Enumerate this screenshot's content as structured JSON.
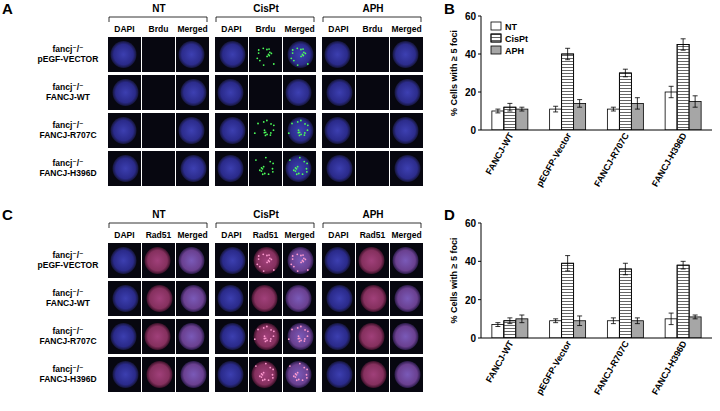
{
  "panels": [
    {
      "letter": "A",
      "groups": [
        "NT",
        "CisPt",
        "APH"
      ],
      "channels": [
        "DAPI",
        "Brdu",
        "Merged"
      ],
      "rows": [
        [
          "fancj⁻/⁻",
          "pEGF-VECTOR"
        ],
        [
          "fancj⁻/⁻",
          "FANCJ-WT"
        ],
        [
          "fancj⁻/⁻",
          "FANCJ-R707C"
        ],
        [
          "fancj⁻/⁻",
          "FANCJ-H396D"
        ]
      ]
    },
    {
      "letter": "C",
      "groups": [
        "NT",
        "CisPt",
        "APH"
      ],
      "channels": [
        "DAPI",
        "Rad51",
        "Merged"
      ],
      "rows": [
        [
          "fancj⁻/⁻",
          "pEGF-VECTOR"
        ],
        [
          "fancj⁻/⁻",
          "FANCJ-WT"
        ],
        [
          "fancj⁻/⁻",
          "FANCJ-R707C"
        ],
        [
          "fancj⁻/⁻",
          "FANCJ-H396D"
        ]
      ]
    }
  ],
  "chart_data": [
    {
      "type": "bar",
      "annotations": [
        "B"
      ],
      "y_label": "% Cells with ≥ 5 foci",
      "categories": [
        "FANCJ-WT",
        "pEGFP-Vector",
        "FANCJ-R707C",
        "FANCJ-H396D"
      ],
      "series": [
        {
          "name": "NT",
          "color": "#ffffff",
          "values": [
            10,
            11,
            11,
            20
          ],
          "errors": [
            1,
            1.5,
            1,
            3
          ]
        },
        {
          "name": "CisPt",
          "color": "#ffffff",
          "marker": "hatch",
          "values": [
            12,
            40,
            30,
            45
          ],
          "errors": [
            2,
            3,
            2,
            3
          ]
        },
        {
          "name": "APH",
          "color": "#a6a6a6",
          "values": [
            11,
            14,
            14,
            15
          ],
          "errors": [
            1,
            2,
            3,
            3
          ]
        }
      ],
      "ylim": [
        0,
        60
      ],
      "yticks": [
        0,
        20,
        40,
        60
      ],
      "legend": "top-left"
    },
    {
      "type": "bar",
      "annotations": [
        "D"
      ],
      "y_label": "% Cells with ≥ 5 foci",
      "categories": [
        "FANCJ-WT",
        "pEGFP-Vector",
        "FANCJ-R707C",
        "FANCJ-H396D"
      ],
      "series": [
        {
          "name": "NT",
          "color": "#ffffff",
          "values": [
            7,
            9,
            9,
            10
          ],
          "errors": [
            1,
            1,
            1.5,
            3
          ]
        },
        {
          "name": "CisPt",
          "color": "#ffffff",
          "marker": "hatch",
          "values": [
            9,
            39,
            36,
            38
          ],
          "errors": [
            1.5,
            4,
            3,
            2
          ]
        },
        {
          "name": "APH",
          "color": "#a6a6a6",
          "values": [
            10,
            9,
            9,
            11
          ],
          "errors": [
            2,
            2.5,
            1.5,
            1
          ]
        }
      ],
      "ylim": [
        0,
        60
      ],
      "yticks": [
        0,
        20,
        40,
        60
      ]
    }
  ]
}
